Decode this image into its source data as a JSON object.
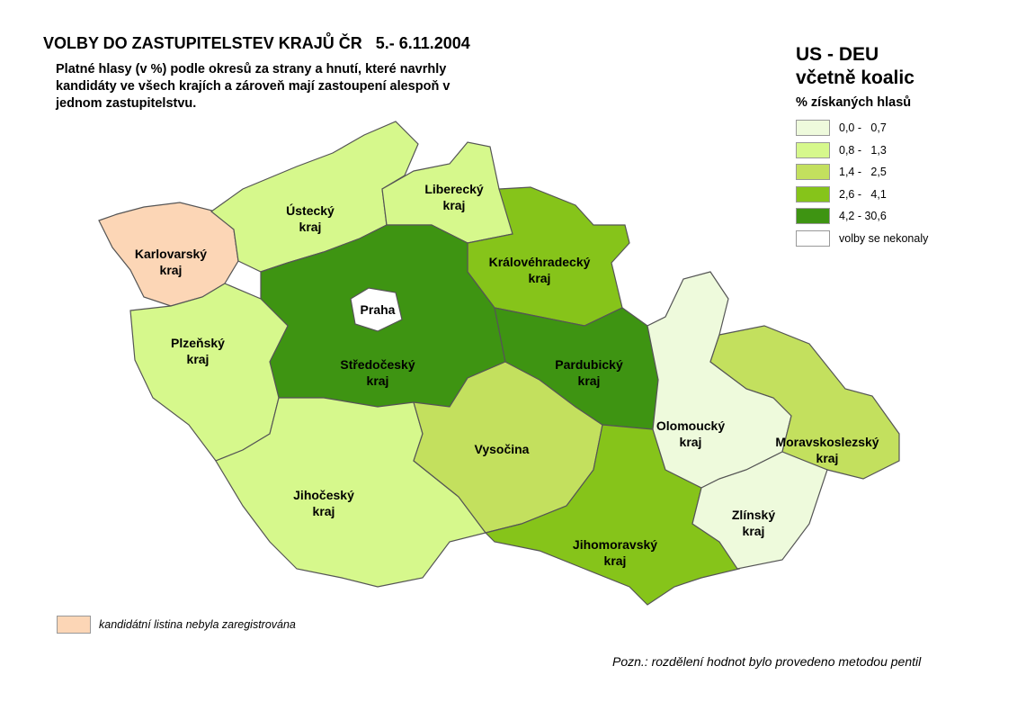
{
  "title": "VOLBY DO ZASTUPITELSTEV KRAJŮ ČR   5.- 6.11.2004",
  "subtitle": "Platné hlasy (v %) podle okresů za strany a hnutí, které navrhly kandidáty ve všech krajích a zároveň mají zastoupení alespoň v jednom zastupitelstvu.",
  "legend": {
    "party": "US - DEU",
    "party_sub": "včetně koalic",
    "heading": "% získaných hlasů",
    "classes": [
      {
        "label": "0,0 -   0,7",
        "color": "#eefadc"
      },
      {
        "label": "0,8 -   1,3",
        "color": "#d6f88c"
      },
      {
        "label": "1,4 -   2,5",
        "color": "#c3e05e"
      },
      {
        "label": "2,6 -   4,1",
        "color": "#86c41a"
      },
      {
        "label": "4,2 - 30,6",
        "color": "#3e9412"
      },
      {
        "label": "volby se nekonaly",
        "color": "#ffffff"
      }
    ]
  },
  "not_registered": {
    "label": "kandidátní listina nebyla zaregistrována",
    "color": "#fcd6b6"
  },
  "note": "Pozn.: rozdělení hodnot bylo provedeno metodou pentil",
  "regions": [
    {
      "name": "Karlovarský kraj",
      "l1": "Karlovarský",
      "l2": "kraj",
      "class": "not_registered"
    },
    {
      "name": "Ústecký kraj",
      "l1": "Ústecký",
      "l2": "kraj",
      "class": 1
    },
    {
      "name": "Liberecký kraj",
      "l1": "Liberecký",
      "l2": "kraj",
      "class": 1
    },
    {
      "name": "Královéhradecký kraj",
      "l1": "Královéhradecký",
      "l2": "kraj",
      "class": 3
    },
    {
      "name": "Středočeský kraj",
      "l1": "Středočeský",
      "l2": "kraj",
      "class": 4
    },
    {
      "name": "Praha",
      "l1": "Praha",
      "l2": "",
      "class": 5
    },
    {
      "name": "Plzeňský kraj",
      "l1": "Plzeňský",
      "l2": "kraj",
      "class": 1
    },
    {
      "name": "Jihočeský kraj",
      "l1": "Jihočeský",
      "l2": "kraj",
      "class": 1
    },
    {
      "name": "Vysočina",
      "l1": "Vysočina",
      "l2": "",
      "class": 2
    },
    {
      "name": "Pardubický kraj",
      "l1": "Pardubický",
      "l2": "kraj",
      "class": 4
    },
    {
      "name": "Jihomoravský kraj",
      "l1": "Jihomoravský",
      "l2": "kraj",
      "class": 3
    },
    {
      "name": "Olomoucký kraj",
      "l1": "Olomoucký",
      "l2": "kraj",
      "class": 0
    },
    {
      "name": "Moravskoslezský kraj",
      "l1": "Moravskoslezský",
      "l2": "kraj",
      "class": 2
    },
    {
      "name": "Zlínský kraj",
      "l1": "Zlínský",
      "l2": "kraj",
      "class": 0
    }
  ]
}
